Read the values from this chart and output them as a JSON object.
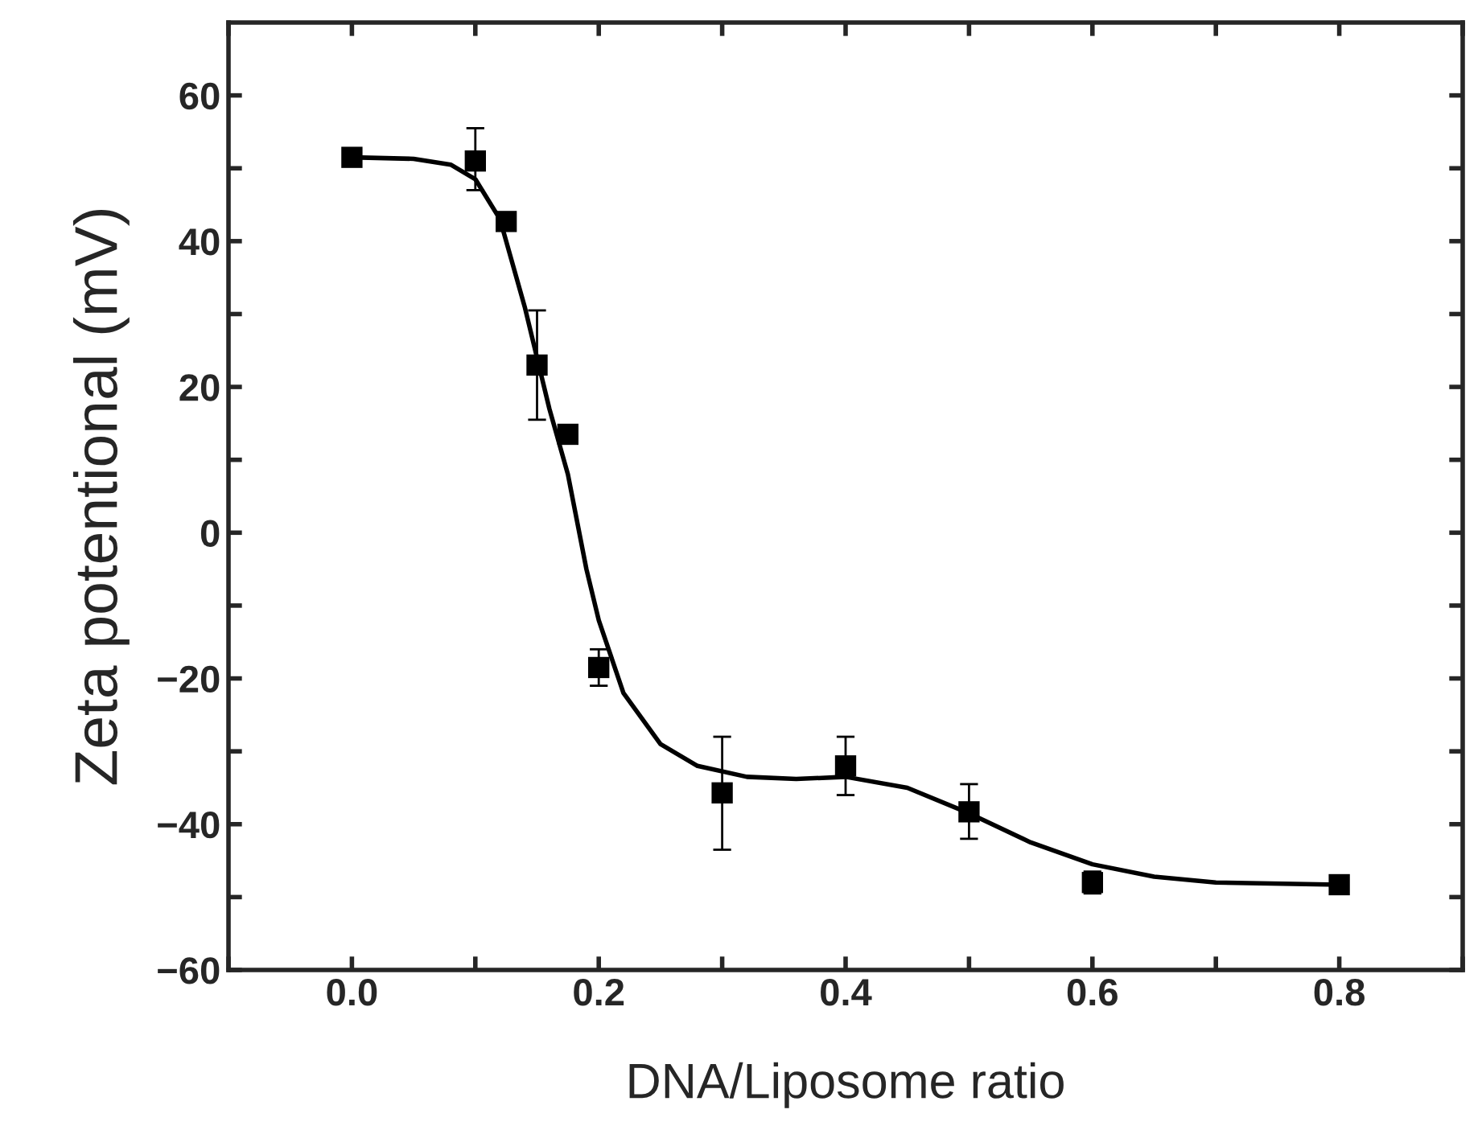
{
  "chart_data": {
    "type": "scatter",
    "xlabel": "DNA/Liposome ratio",
    "ylabel": "Zeta potentional (mV)",
    "xlim": [
      -0.1,
      0.9
    ],
    "ylim": [
      -60,
      70
    ],
    "xticks": [
      {
        "value": -0.1,
        "label": null
      },
      {
        "value": 0,
        "label": "0.0"
      },
      {
        "value": 0.1,
        "label": null
      },
      {
        "value": 0.2,
        "label": "0.2"
      },
      {
        "value": 0.3,
        "label": null
      },
      {
        "value": 0.4,
        "label": "0.4"
      },
      {
        "value": 0.5,
        "label": null
      },
      {
        "value": 0.6,
        "label": "0.6"
      },
      {
        "value": 0.7,
        "label": null
      },
      {
        "value": 0.8,
        "label": "0.8"
      },
      {
        "value": 0.9,
        "label": null
      }
    ],
    "yticks": [
      -60,
      {
        "value": -50,
        "label": null
      },
      -40,
      {
        "value": -30,
        "label": null
      },
      -20,
      {
        "value": -10,
        "label": null
      },
      0,
      {
        "value": 10,
        "label": null
      },
      20,
      {
        "value": 30,
        "label": null
      },
      40,
      {
        "value": 50,
        "label": null
      },
      60
    ],
    "grid": false,
    "legend": false,
    "series": [
      {
        "color": "#000000",
        "marker": "square",
        "x": [
          0,
          0.1,
          0.125,
          0.15,
          0.175,
          0.2,
          0.3,
          0.4,
          0.5,
          0.6,
          0.8
        ],
        "values": [
          51.5,
          51,
          42.7,
          23,
          13.5,
          -18.5,
          -35.7,
          -32,
          -38.3,
          -48,
          -48.3
        ],
        "errors": [
          null,
          [
            47,
            55.5
          ],
          null,
          [
            15.5,
            30.5
          ],
          null,
          [
            -21,
            -16
          ],
          [
            -43.5,
            -28
          ],
          [
            -36,
            -28
          ],
          [
            -42,
            -34.5
          ],
          [
            -49.5,
            -46.5
          ],
          null
        ]
      },
      {
        "type": "line",
        "color": "#000000",
        "line_style": "solid",
        "marker": "none",
        "x": [
          0,
          0.05,
          0.08,
          0.1,
          0.12,
          0.14,
          0.15,
          0.16,
          0.175,
          0.19,
          0.2,
          0.22,
          0.25,
          0.28,
          0.32,
          0.36,
          0.4,
          0.45,
          0.5,
          0.55,
          0.6,
          0.65,
          0.7,
          0.8
        ],
        "values": [
          51.5,
          51.3,
          50.5,
          48.5,
          43,
          31,
          24,
          17,
          8,
          -5,
          -12,
          -22,
          -29,
          -32,
          -33.5,
          -33.8,
          -33.5,
          -35,
          -38.5,
          -42.5,
          -45.5,
          -47.2,
          -48,
          -48.3
        ]
      }
    ]
  }
}
